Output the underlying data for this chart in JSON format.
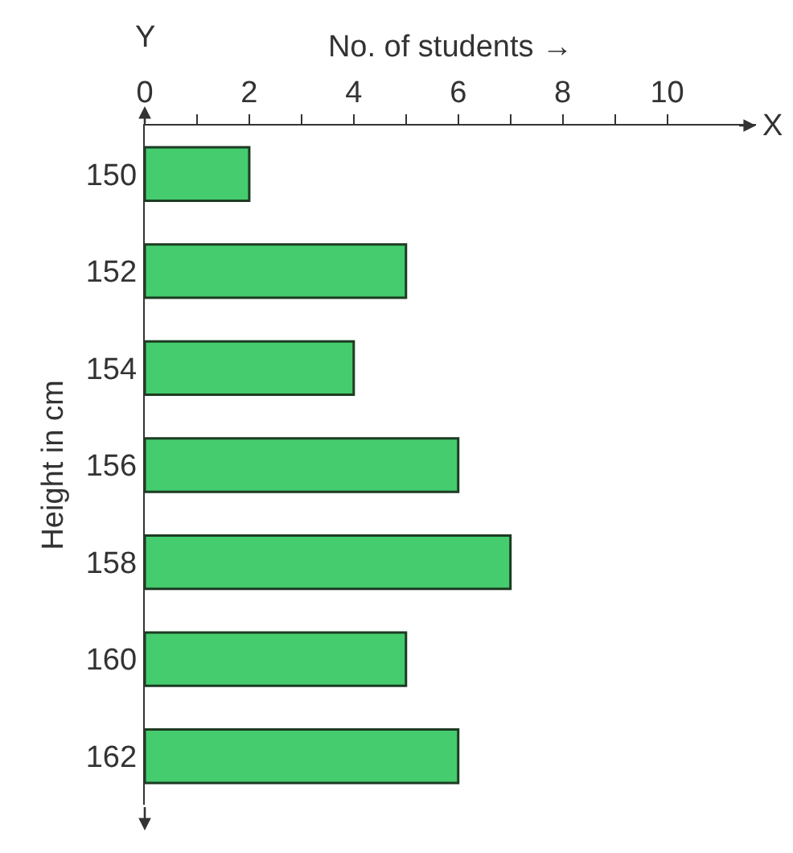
{
  "chart_data": {
    "type": "bar",
    "orientation": "horizontal",
    "xlabel": "No. of students →",
    "ylabel": "Height in cm",
    "categories": [
      "150",
      "152",
      "154",
      "156",
      "158",
      "160",
      "162"
    ],
    "values": [
      2,
      5,
      4,
      6,
      7,
      5,
      6
    ],
    "color": "#44cc6e",
    "xlim": [
      0,
      11.7
    ],
    "xticks": [
      0,
      {
        "value": 1,
        "label": null
      },
      2,
      {
        "value": 3,
        "label": null
      },
      4,
      {
        "value": 5,
        "label": null
      },
      6,
      {
        "value": 7,
        "label": null
      },
      8,
      {
        "value": 9,
        "label": null
      },
      10
    ],
    "annotations": [
      "Y",
      "X"
    ]
  }
}
